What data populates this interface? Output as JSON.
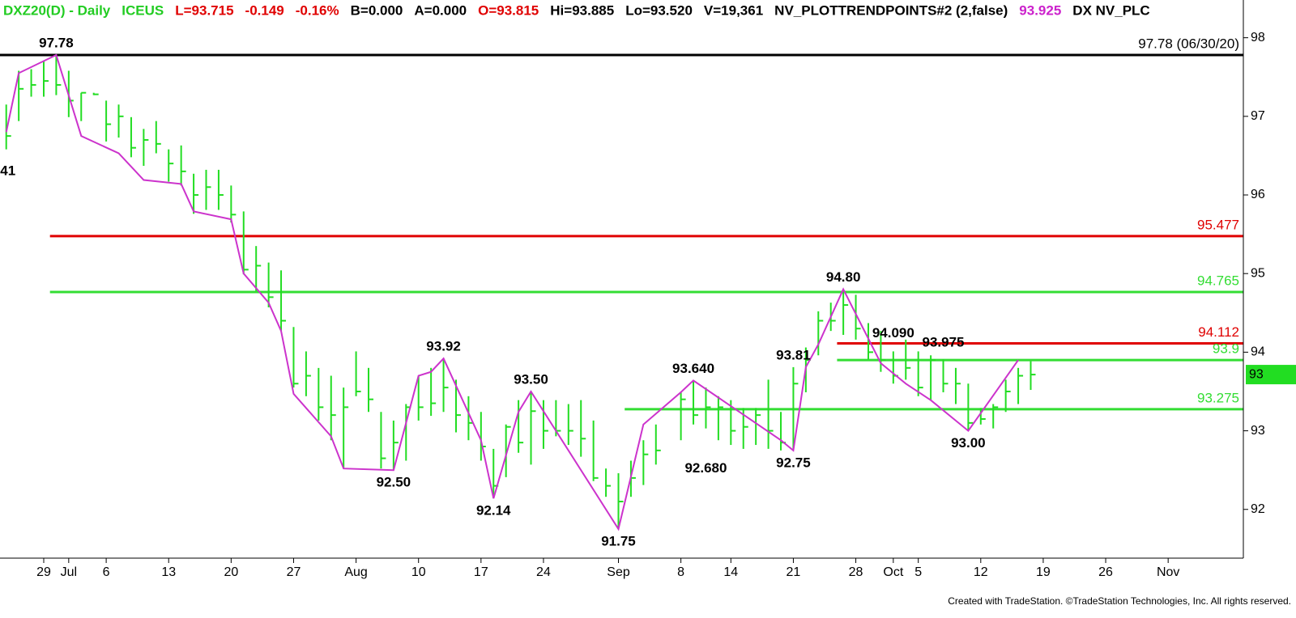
{
  "chart_data": {
    "type": "ohlc",
    "header": [
      {
        "text": "DXZ20(D) - Daily",
        "color": "#22cc22"
      },
      {
        "text": "ICEUS",
        "color": "#22cc22"
      },
      {
        "text": "L=93.715",
        "color": "#e00000"
      },
      {
        "text": "-0.149",
        "color": "#e00000"
      },
      {
        "text": "-0.16%",
        "color": "#e00000"
      },
      {
        "text": "B=0.000",
        "color": "#000000"
      },
      {
        "text": "A=0.000",
        "color": "#000000"
      },
      {
        "text": "O=93.815",
        "color": "#e00000"
      },
      {
        "text": "Hi=93.885",
        "color": "#000000"
      },
      {
        "text": "Lo=93.520",
        "color": "#000000"
      },
      {
        "text": "V=19,361",
        "color": "#000000"
      },
      {
        "text": "NV_PLOTTRENDPOINTS#2 (2,false)",
        "color": "#000000"
      },
      {
        "text": "93.925",
        "color": "#cc22cc"
      },
      {
        "text": "DX NV_PLC",
        "color": "#000000"
      }
    ],
    "categories": [
      null,
      null,
      null,
      "29",
      null,
      "Jul",
      null,
      null,
      "6",
      null,
      null,
      null,
      null,
      "13",
      null,
      null,
      null,
      null,
      "20",
      null,
      null,
      null,
      null,
      "27",
      null,
      null,
      null,
      null,
      "Aug",
      null,
      null,
      null,
      null,
      "10",
      null,
      null,
      null,
      null,
      "17",
      null,
      null,
      null,
      null,
      "24",
      null,
      null,
      null,
      null,
      null,
      "Sep",
      null,
      null,
      null,
      null,
      "8",
      null,
      null,
      null,
      "14",
      null,
      null,
      null,
      null,
      "21",
      null,
      null,
      null,
      null,
      "28",
      null,
      null,
      "Oct",
      null,
      "5",
      null,
      null,
      null,
      null,
      "12",
      null,
      null,
      null,
      null,
      "19",
      null,
      null,
      null,
      null,
      "26",
      null,
      null,
      null,
      null,
      "Nov",
      null,
      null,
      null,
      null,
      null
    ],
    "ohlc": {
      "color": "#22dd22",
      "high": [
        97.15,
        97.58,
        97.6,
        97.7,
        97.78,
        97.58,
        97.3,
        97.3,
        97.2,
        97.15,
        96.99,
        96.84,
        96.94,
        96.58,
        96.63,
        96.27,
        96.32,
        96.32,
        96.12,
        95.79,
        95.35,
        95.14,
        95.04,
        94.32,
        94.01,
        93.8,
        93.7,
        93.55,
        94.01,
        93.8,
        93.24,
        93.13,
        93.34,
        93.7,
        93.8,
        93.92,
        93.65,
        93.44,
        93.24,
        92.77,
        93.08,
        93.39,
        93.5,
        93.39,
        93.39,
        93.34,
        93.39,
        93.13,
        92.52,
        92.46,
        92.62,
        92.88,
        93.08,
        null,
        93.49,
        93.64,
        93.55,
        93.44,
        93.39,
        93.29,
        93.29,
        93.65,
        93.24,
        93.81,
        94.06,
        94.52,
        94.63,
        94.8,
        94.73,
        94.37,
        94.27,
        94.01,
        94.16,
        94.01,
        93.96,
        93.91,
        93.8,
        93.6,
        93.29,
        93.34,
        93.65,
        93.8,
        93.885,
        null,
        null,
        null,
        null,
        null,
        null,
        null,
        null,
        null,
        null,
        null,
        null,
        null,
        null,
        null,
        null
      ],
      "low": [
        96.58,
        96.94,
        97.25,
        97.25,
        97.27,
        96.99,
        96.94,
        97.27,
        96.68,
        96.73,
        96.48,
        96.37,
        96.53,
        96.17,
        96.12,
        95.76,
        95.81,
        95.81,
        95.65,
        94.99,
        94.78,
        94.57,
        94.27,
        93.55,
        93.44,
        93.13,
        92.88,
        92.52,
        93.44,
        93.24,
        92.52,
        92.5,
        92.62,
        93.13,
        93.19,
        93.24,
        92.98,
        92.88,
        92.62,
        92.14,
        92.41,
        92.72,
        92.57,
        92.77,
        92.93,
        92.82,
        92.67,
        92.36,
        92.16,
        91.75,
        92.16,
        92.31,
        92.57,
        null,
        92.88,
        93.08,
        93.03,
        92.88,
        92.82,
        92.77,
        92.82,
        92.77,
        92.75,
        92.77,
        93.49,
        93.96,
        94.27,
        94.22,
        94.16,
        93.91,
        93.75,
        93.6,
        93.65,
        93.44,
        93.39,
        93.49,
        93.34,
        93.0,
        93.08,
        93.03,
        93.24,
        93.34,
        93.52,
        null,
        null,
        null,
        null,
        null,
        null,
        null,
        null,
        null,
        null,
        null,
        null,
        null,
        null,
        null,
        null
      ],
      "close": [
        96.75,
        97.35,
        97.4,
        97.45,
        97.4,
        97.2,
        97.3,
        97.28,
        96.9,
        97.0,
        96.6,
        96.7,
        96.65,
        96.4,
        96.3,
        96.0,
        96.1,
        96.0,
        95.75,
        95.05,
        95.1,
        94.7,
        94.4,
        93.6,
        93.7,
        93.3,
        93.2,
        93.3,
        93.5,
        93.4,
        92.65,
        92.85,
        93.3,
        93.3,
        93.35,
        93.55,
        93.2,
        93.1,
        92.8,
        92.3,
        93.05,
        92.85,
        93.25,
        93.0,
        93.0,
        93.0,
        92.9,
        92.4,
        92.3,
        92.1,
        92.4,
        92.7,
        92.75,
        null,
        93.4,
        93.2,
        93.3,
        93.3,
        93.0,
        93.05,
        93.2,
        93.0,
        92.85,
        93.6,
        93.9,
        94.4,
        94.4,
        94.6,
        94.3,
        94.0,
        93.9,
        93.7,
        93.8,
        93.55,
        93.9,
        93.6,
        93.6,
        93.1,
        93.15,
        93.3,
        93.5,
        93.7,
        93.715,
        null,
        null,
        null,
        null,
        null,
        null,
        null,
        null,
        null,
        null,
        null,
        null,
        null,
        null,
        null,
        null
      ]
    },
    "zigzag": {
      "color": "#cc33cc",
      "x": [
        0,
        1,
        4,
        6,
        9,
        11,
        14,
        15,
        18,
        19,
        21,
        22,
        23,
        26,
        27,
        31,
        33,
        34,
        35,
        38,
        39,
        41,
        42,
        49,
        51,
        54,
        55,
        62,
        63,
        64,
        65,
        67,
        70,
        72,
        74,
        77,
        81
      ],
      "values": [
        96.8,
        97.55,
        97.78,
        96.75,
        96.53,
        96.19,
        96.14,
        95.79,
        95.69,
        95.0,
        94.63,
        94.27,
        93.47,
        92.93,
        92.52,
        92.5,
        93.7,
        93.75,
        93.92,
        92.88,
        92.14,
        93.24,
        93.5,
        91.75,
        93.08,
        93.49,
        93.64,
        92.88,
        92.75,
        93.81,
        94.1,
        94.8,
        93.86,
        93.6,
        93.39,
        93.0,
        93.9
      ]
    },
    "levels": [
      {
        "value": 97.78,
        "label": "97.78 (06/30/20)",
        "color": "#000000",
        "from": 0
      },
      {
        "value": 95.477,
        "label": "95.477",
        "color": "#e00000",
        "from": 4
      },
      {
        "value": 94.765,
        "label": "94.765",
        "color": "#33dd33",
        "from": 4
      },
      {
        "value": 94.112,
        "label": "94.112",
        "color": "#e00000",
        "from": 67
      },
      {
        "value": 93.9,
        "label": "93.9",
        "color": "#33dd33",
        "from": 67
      },
      {
        "value": 93.275,
        "label": "93.275",
        "color": "#33dd33",
        "from": 50
      }
    ],
    "annotations": [
      {
        "text": "97.78",
        "x": 4,
        "y": 97.78,
        "position": "above"
      },
      {
        "text": "41",
        "x": 0,
        "y": 96.3,
        "position": "center"
      },
      {
        "text": "92.50",
        "x": 31,
        "y": 92.5,
        "position": "below"
      },
      {
        "text": "93.92",
        "x": 35,
        "y": 93.92,
        "position": "above"
      },
      {
        "text": "92.14",
        "x": 39,
        "y": 92.14,
        "position": "below"
      },
      {
        "text": "93.50",
        "x": 42,
        "y": 93.5,
        "position": "above"
      },
      {
        "text": "91.75",
        "x": 49,
        "y": 91.75,
        "position": "below"
      },
      {
        "text": "93.640",
        "x": 55,
        "y": 93.64,
        "position": "above"
      },
      {
        "text": "92.680",
        "x": 56,
        "y": 92.68,
        "position": "below"
      },
      {
        "text": "92.75",
        "x": 63,
        "y": 92.75,
        "position": "below"
      },
      {
        "text": "93.81",
        "x": 63,
        "y": 93.81,
        "position": "above"
      },
      {
        "text": "94.80",
        "x": 67,
        "y": 94.8,
        "position": "above"
      },
      {
        "text": "94.090",
        "x": 71,
        "y": 94.09,
        "position": "above"
      },
      {
        "text": "93.975",
        "x": 75,
        "y": 93.975,
        "position": "above"
      },
      {
        "text": "93.00",
        "x": 77,
        "y": 93.0,
        "position": "below"
      }
    ],
    "last_price": {
      "value": 93.715,
      "label": "93",
      "color": "#22dd22"
    },
    "ylim": [
      91.38,
      98.48
    ],
    "yticks": [
      92,
      93,
      94,
      95,
      96,
      97,
      98
    ],
    "footer": "Created with TradeStation. ©TradeStation Technologies, Inc. All rights reserved."
  }
}
